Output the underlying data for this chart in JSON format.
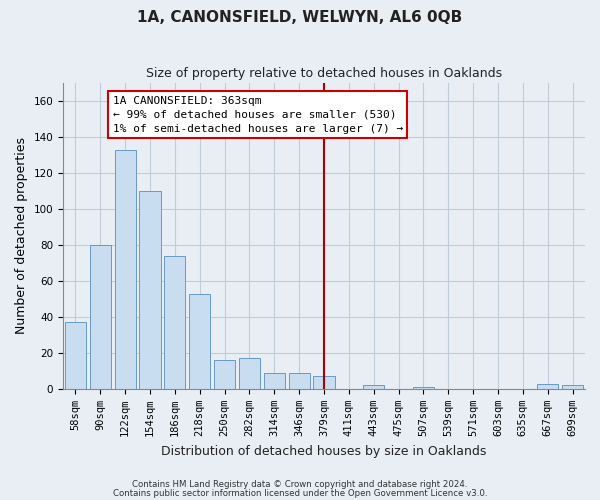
{
  "title": "1A, CANONSFIELD, WELWYN, AL6 0QB",
  "subtitle": "Size of property relative to detached houses in Oaklands",
  "xlabel": "Distribution of detached houses by size in Oaklands",
  "ylabel": "Number of detached properties",
  "bar_color": "#c8ddef",
  "bar_edge_color": "#6699cc",
  "categories": [
    "58sqm",
    "90sqm",
    "122sqm",
    "154sqm",
    "186sqm",
    "218sqm",
    "250sqm",
    "282sqm",
    "314sqm",
    "346sqm",
    "379sqm",
    "411sqm",
    "443sqm",
    "475sqm",
    "507sqm",
    "539sqm",
    "571sqm",
    "603sqm",
    "635sqm",
    "667sqm",
    "699sqm"
  ],
  "values": [
    37,
    80,
    133,
    110,
    74,
    53,
    16,
    17,
    9,
    9,
    7,
    0,
    2,
    0,
    1,
    0,
    0,
    0,
    0,
    3,
    2
  ],
  "ylim": [
    0,
    170
  ],
  "yticks": [
    0,
    20,
    40,
    60,
    80,
    100,
    120,
    140,
    160
  ],
  "vline_x_index": 10,
  "vline_color": "#aa0000",
  "annotation_title": "1A CANONSFIELD: 363sqm",
  "annotation_line1": "← 99% of detached houses are smaller (530)",
  "annotation_line2": "1% of semi-detached houses are larger (7) →",
  "annotation_box_color": "#ffffff",
  "annotation_box_edge": "#cc0000",
  "footnote1": "Contains HM Land Registry data © Crown copyright and database right 2024.",
  "footnote2": "Contains public sector information licensed under the Open Government Licence v3.0.",
  "bg_color": "#e8eef4",
  "plot_bg_color": "#e8eef4",
  "grid_color": "#c0ccda",
  "title_fontsize": 11,
  "subtitle_fontsize": 9,
  "ylabel_fontsize": 9,
  "xlabel_fontsize": 9,
  "tick_fontsize": 7.5
}
